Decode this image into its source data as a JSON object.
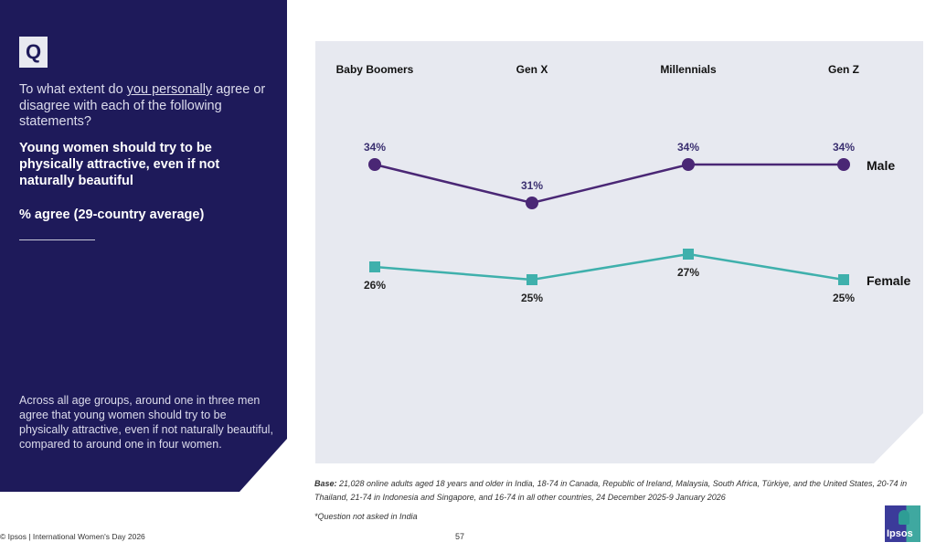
{
  "left_panel": {
    "q_icon": "Q",
    "question_before": "To what extent do ",
    "question_underlined": "you personally",
    "question_after": " agree or disagree with each of the following statements?",
    "statement": "Young women should try to be physically attractive, even if not naturally beautiful",
    "metric": "% agree (29-country average)",
    "summary": "Across all age groups, around one in three men agree that young women should try to be physically attractive, even if not naturally beautiful, compared to around one in four women."
  },
  "chart_data": {
    "type": "line",
    "categories": [
      "Baby Boomers",
      "Gen X",
      "Millennials",
      "Gen Z"
    ],
    "series": [
      {
        "name": "Male",
        "values": [
          34,
          31,
          34,
          34
        ],
        "labels": [
          "34%",
          "31%",
          "34%",
          "34%"
        ],
        "color": "#4a2775",
        "marker": "circle"
      },
      {
        "name": "Female",
        "values": [
          26,
          25,
          27,
          25
        ],
        "labels": [
          "26%",
          "25%",
          "27%",
          "25%"
        ],
        "color": "#3fb0ac",
        "marker": "square"
      }
    ],
    "grid": false,
    "legend": "right-end labels"
  },
  "footer": {
    "base_label": "Base:",
    "base_text": " 21,028 online adults aged 18 years and older in India, 18-74 in Canada, Republic of Ireland, Malaysia, South Africa, Türkiye, and the United States, 20-74 in Thailand, 21-74 in Indonesia and Singapore, and 16-74 in all other countries, 24 December 2025-9 January 2026",
    "note": "*Question not asked in India",
    "copyright": "© Ipsos | International Women's Day 2026",
    "page": "57",
    "logo": "Ipsos"
  },
  "colors": {
    "panel": "#1e1a5a",
    "chart_bg": "#e7e9f0",
    "male": "#4a2775",
    "female": "#3fb0ac"
  }
}
